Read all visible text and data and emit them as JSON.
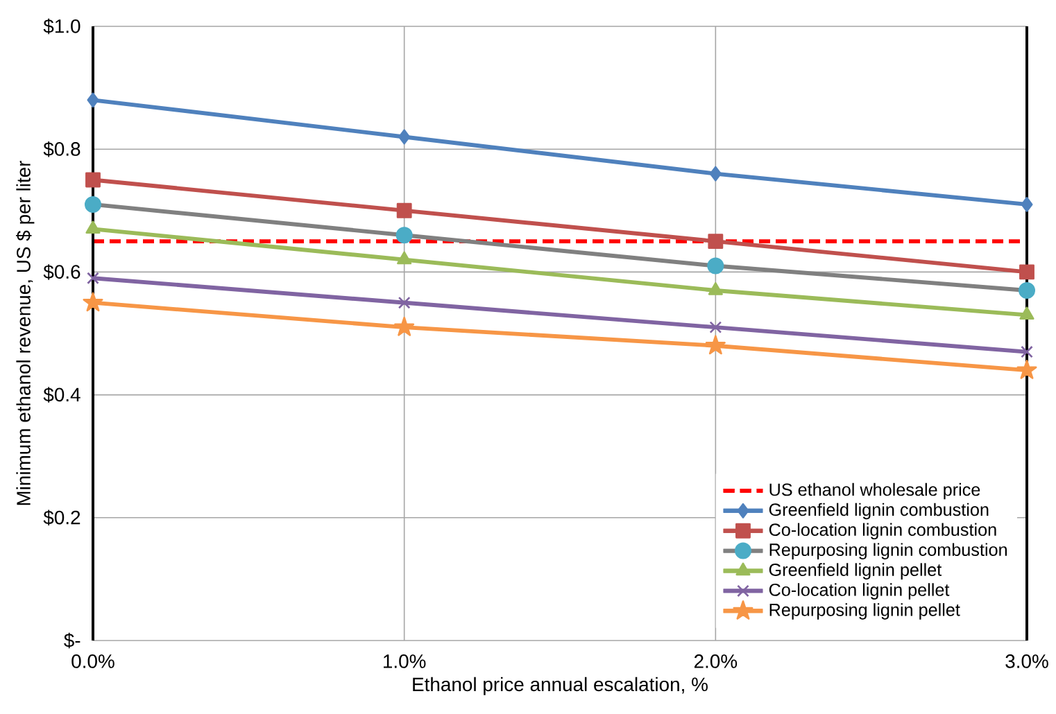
{
  "chart_data": {
    "type": "line",
    "xlabel": "Ethanol price annual escalation, %",
    "ylabel": "Minimum ethanol revenue, US $ per liter",
    "x": [
      0,
      1,
      2,
      3
    ],
    "xlim": [
      0,
      3
    ],
    "xticks": [
      {
        "value": 0,
        "label": "0.0%"
      },
      {
        "value": 1,
        "label": "1.0%"
      },
      {
        "value": 2,
        "label": "2.0%"
      },
      {
        "value": 3,
        "label": "3.0%"
      }
    ],
    "ylim": [
      0,
      1
    ],
    "yticks": [
      {
        "value": 0,
        "label": "$-"
      },
      {
        "value": 0.2,
        "label": "$0.2"
      },
      {
        "value": 0.4,
        "label": "$0.4"
      },
      {
        "value": 0.6,
        "label": "$0.6"
      },
      {
        "value": 0.8,
        "label": "$0.8"
      },
      {
        "value": 1,
        "label": "$1.0"
      }
    ],
    "grid": true,
    "legend": "bottom right",
    "series": [
      {
        "name": "US ethanol wholesale price",
        "color": "#ff0000",
        "values": [
          0.65,
          0.65,
          0.65,
          0.65
        ],
        "line_style": "dashed",
        "marker": "none"
      },
      {
        "name": "Greenfield lignin combustion",
        "color": "#4f81bd",
        "values": [
          0.88,
          0.82,
          0.76,
          0.71
        ],
        "marker": "diamond"
      },
      {
        "name": "Co-location lignin combustion",
        "color": "#c0504d",
        "values": [
          0.75,
          0.7,
          0.65,
          0.6
        ],
        "marker": "square"
      },
      {
        "name": "Repurposing lignin combustion",
        "color": "#808080",
        "colors": [
          "#4bacc6",
          "#4bacc6",
          "#4bacc6",
          "#4bacc6"
        ],
        "values": [
          0.71,
          0.66,
          0.61,
          0.57
        ],
        "marker": "circle"
      },
      {
        "name": "Greenfield lignin pellet",
        "color": "#9bbb59",
        "values": [
          0.67,
          0.62,
          0.57,
          0.53
        ],
        "marker": "triangle"
      },
      {
        "name": "Co-location lignin pellet",
        "color": "#8064a2",
        "values": [
          0.59,
          0.55,
          0.51,
          0.47
        ],
        "marker": "cross"
      },
      {
        "name": "Repurposing lignin pellet",
        "color": "#f79646",
        "values": [
          0.55,
          0.51,
          0.48,
          0.44
        ],
        "marker": "star"
      }
    ]
  }
}
